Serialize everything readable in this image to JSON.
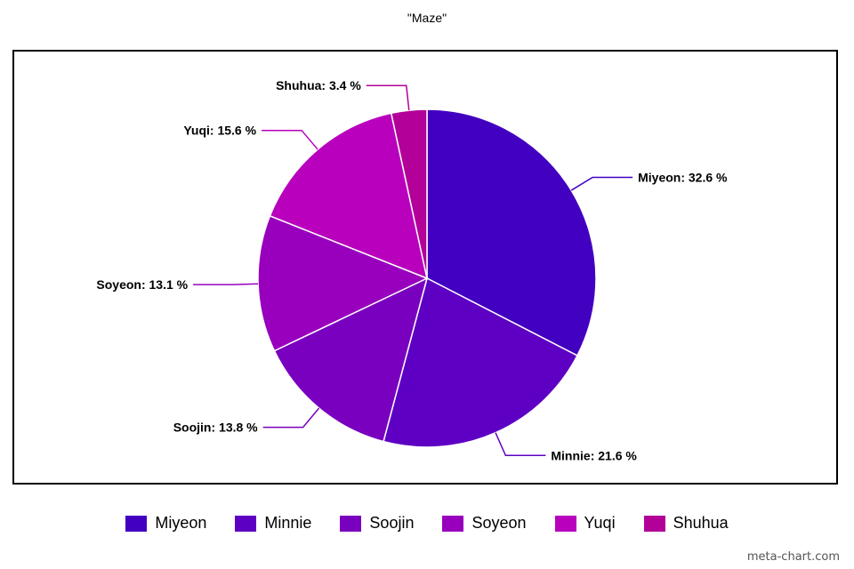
{
  "chart_data": {
    "type": "pie",
    "title": "\"Maze\"",
    "slices": [
      {
        "name": "Miyeon",
        "value": 32.6,
        "label": "Miyeon: 32.6 %",
        "color": "#4200C0"
      },
      {
        "name": "Minnie",
        "value": 21.6,
        "label": "Minnie: 21.6 %",
        "color": "#5E00C3"
      },
      {
        "name": "Soojin",
        "value": 13.8,
        "label": "Soojin: 13.8 %",
        "color": "#7A00BF"
      },
      {
        "name": "Soyeon",
        "value": 13.1,
        "label": "Soyeon: 13.1 %",
        "color": "#9800BD"
      },
      {
        "name": "Yuqi",
        "value": 15.6,
        "label": "Yuqi: 15.6 %",
        "color": "#B800BD"
      },
      {
        "name": "Shuhua",
        "value": 3.4,
        "label": "Shuhua: 3.4 %",
        "color": "#B20098"
      }
    ],
    "legend_position": "bottom"
  },
  "watermark": "meta-chart.com"
}
